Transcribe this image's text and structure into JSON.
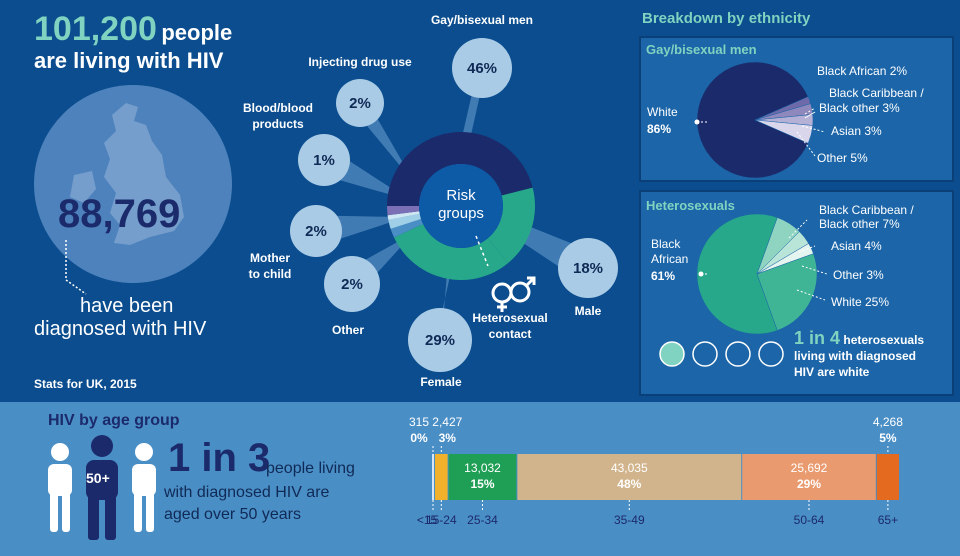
{
  "header": {
    "people_number": "101,200",
    "people_word": "people",
    "living_text": "are living with HIV",
    "diagnosed_number": "88,769",
    "diagnosed_line1": "have been",
    "diagnosed_line2": "diagnosed with HIV",
    "stats_note": "Stats for UK, 2015"
  },
  "risk_groups": {
    "center_label_line1": "Risk",
    "center_label_line2": "groups",
    "heterosexual_label_line1": "Heterosexual",
    "heterosexual_label_line2": "contact",
    "items": [
      {
        "label": "Gay/bisexual men",
        "pct": "46%"
      },
      {
        "label": "Injecting drug use",
        "pct": "2%"
      },
      {
        "label_line1": "Blood/blood",
        "label_line2": "products",
        "pct": "1%"
      },
      {
        "label_line1": "Mother",
        "label_line2": "to child",
        "pct": "2%"
      },
      {
        "label": "Other",
        "pct": "2%"
      },
      {
        "label": "Female",
        "pct": "29%"
      },
      {
        "label": "Male",
        "pct": "18%"
      }
    ]
  },
  "ethnicity": {
    "title": "Breakdown by ethnicity",
    "gay_title": "Gay/bisexual men",
    "hetero_title": "Heterosexuals",
    "gay_labels": {
      "white_line1": "White",
      "white_line2": "86%",
      "black_african": "Black African 2%",
      "black_caribbean_line1": "Black Caribbean /",
      "black_caribbean_line2": "Black other 3%",
      "asian": "Asian 3%",
      "other": "Other 5%"
    },
    "hetero_labels": {
      "black_african_line1": "Black",
      "black_african_line2": "African",
      "black_african_line3": "61%",
      "black_caribbean_line1": "Black Caribbean /",
      "black_caribbean_line2": "Black other 7%",
      "asian": "Asian 4%",
      "other": "Other 3%",
      "white": "White 25%"
    },
    "one_in_four": "1 in 4",
    "one_in_four_line1": "heterosexuals",
    "one_in_four_line2": "living with diagnosed",
    "one_in_four_line3": "HIV are white"
  },
  "age": {
    "title": "HIV by age group",
    "icon_label": "50+",
    "one_in_three": "1 in 3",
    "line1": "people living",
    "line2": "with diagnosed HIV are",
    "line3": "aged over 50 years"
  },
  "colors": {
    "dark_navy": "#1b2a6b",
    "teal": "#27a88a",
    "light_teal": "#7fd3c0",
    "top_bg": "#0b4d8e",
    "bottom_bg": "#4a8ec6"
  },
  "chart_data": [
    {
      "type": "pie",
      "title": "Risk groups",
      "categories": [
        "Gay/bisexual men",
        "Male",
        "Female",
        "Other",
        "Mother to child",
        "Blood/blood products",
        "Injecting drug use"
      ],
      "values": [
        46,
        18,
        29,
        2,
        2,
        1,
        2
      ],
      "colors": [
        "#1b2a6b",
        "#27a88a",
        "#27a88a",
        "#4a8ec6",
        "#9fd0e8",
        "#cfe6f3",
        "#7b6fb5"
      ]
    },
    {
      "type": "pie",
      "title": "Gay/bisexual men",
      "categories": [
        "White",
        "Black African",
        "Black Caribbean / Black other",
        "Asian",
        "Other"
      ],
      "values": [
        86,
        2,
        3,
        3,
        5
      ],
      "colors": [
        "#1b2a6b",
        "#6e6aa9",
        "#8e88bd",
        "#b4b0d6",
        "#d9d6ec"
      ]
    },
    {
      "type": "pie",
      "title": "Heterosexuals",
      "categories": [
        "Black African",
        "Black Caribbean / Black other",
        "Asian",
        "Other",
        "White"
      ],
      "values": [
        61,
        7,
        4,
        3,
        25
      ],
      "colors": [
        "#27a88a",
        "#8ed4c0",
        "#b9e4d8",
        "#e4f4ef",
        "#3fb595"
      ]
    },
    {
      "type": "bar",
      "title": "HIV by age group",
      "categories": [
        "<15",
        "15-24",
        "25-34",
        "35-49",
        "50-64",
        "65+"
      ],
      "values": [
        315,
        2427,
        13032,
        43035,
        25692,
        4268
      ],
      "value_labels": [
        "315",
        "2,427",
        "13,032",
        "43,035",
        "25,692",
        "4,268"
      ],
      "pct_labels": [
        "0%",
        "3%",
        "15%",
        "48%",
        "29%",
        "5%"
      ],
      "colors": [
        "#d7e6f2",
        "#f2b12a",
        "#1f9e55",
        "#d2b48c",
        "#e99a6e",
        "#e36a1e"
      ]
    }
  ]
}
